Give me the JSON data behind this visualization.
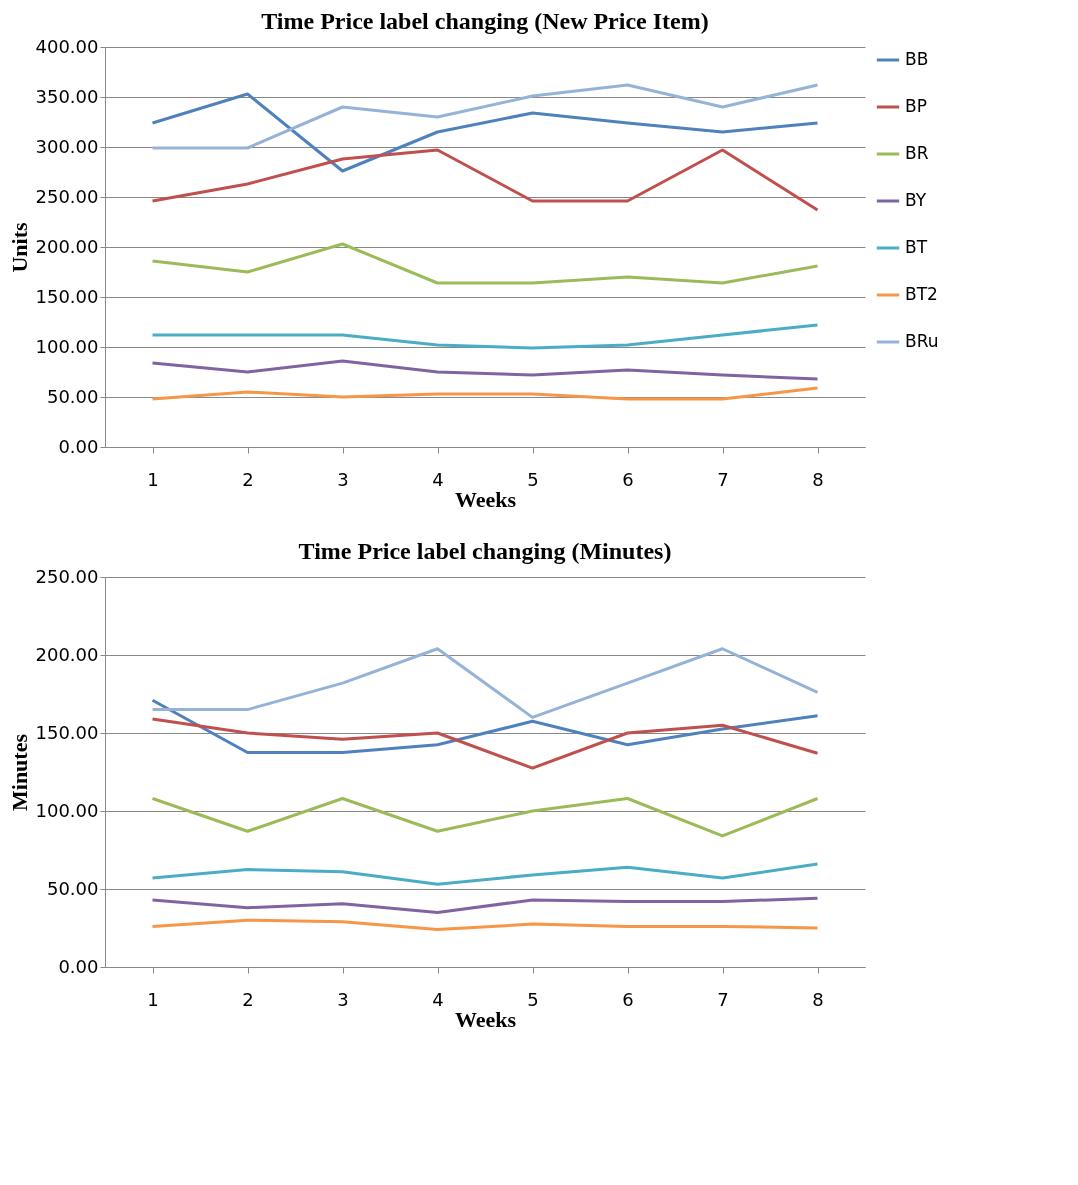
{
  "chart_data": [
    {
      "type": "line",
      "title": "Time Price label changing (New Price Item)",
      "xlabel": "Weeks",
      "ylabel": "Units",
      "categories": [
        "1",
        "2",
        "3",
        "4",
        "5",
        "6",
        "7",
        "8"
      ],
      "series": [
        {
          "name": "BB",
          "color": "#4f81bd",
          "values": [
            324,
            353,
            276,
            315,
            334,
            324,
            315,
            324
          ]
        },
        {
          "name": "BP",
          "color": "#c0504d",
          "values": [
            246,
            263,
            288,
            297,
            246,
            246,
            297,
            237
          ]
        },
        {
          "name": "BR",
          "color": "#9bbb59",
          "values": [
            186,
            175,
            203,
            164,
            164,
            170,
            164,
            181
          ]
        },
        {
          "name": "BY",
          "color": "#8064a2",
          "values": [
            84,
            75,
            86,
            75,
            72,
            77,
            72,
            68
          ]
        },
        {
          "name": "BT",
          "color": "#4bacc6",
          "values": [
            112,
            112,
            112,
            102,
            99,
            102,
            112,
            122
          ]
        },
        {
          "name": "BT2",
          "color": "#f79646",
          "values": [
            48,
            55,
            50,
            53,
            53,
            48,
            48,
            59
          ]
        },
        {
          "name": "BRu",
          "color": "#95b3d7",
          "values": [
            299,
            299,
            340,
            330,
            351,
            362,
            340,
            362
          ]
        }
      ],
      "ylim": [
        0,
        400
      ],
      "yticks": [
        {
          "value": 0,
          "label": "0.00"
        },
        {
          "value": 50,
          "label": "50.00"
        },
        {
          "value": 100,
          "label": "100.00"
        },
        {
          "value": 150,
          "label": "150.00"
        },
        {
          "value": 200,
          "label": "200.00"
        },
        {
          "value": 250,
          "label": "250.00"
        },
        {
          "value": 300,
          "label": "300.00"
        },
        {
          "value": 350,
          "label": "350.00"
        },
        {
          "value": 400,
          "label": "400.00"
        }
      ],
      "grid": "y",
      "legend": "right",
      "marker": "none",
      "line_style": "solid"
    },
    {
      "type": "line",
      "title": "Time Price label changing (Minutes)",
      "xlabel": "Weeks",
      "ylabel": "Minutes",
      "categories": [
        "1",
        "2",
        "3",
        "4",
        "5",
        "6",
        "7",
        "8"
      ],
      "series": [
        {
          "name": "BB",
          "color": "#4f81bd",
          "values": [
            171,
            137.5,
            137.5,
            142.5,
            157.5,
            142.5,
            152.5,
            161
          ]
        },
        {
          "name": "BP",
          "color": "#c0504d",
          "values": [
            159,
            150,
            146,
            150,
            127.5,
            150,
            155,
            137
          ]
        },
        {
          "name": "BR",
          "color": "#9bbb59",
          "values": [
            108,
            87,
            108,
            87,
            100,
            108,
            84,
            108
          ]
        },
        {
          "name": "BY",
          "color": "#8064a2",
          "values": [
            43,
            38,
            40.5,
            35,
            43,
            42,
            42,
            44
          ]
        },
        {
          "name": "BT",
          "color": "#4bacc6",
          "values": [
            57,
            62.5,
            61,
            53,
            59,
            64,
            57,
            66
          ]
        },
        {
          "name": "BT2",
          "color": "#f79646",
          "values": [
            26,
            30,
            29,
            24,
            27.5,
            26,
            26,
            25
          ]
        },
        {
          "name": "BRu",
          "color": "#95b3d7",
          "values": [
            165,
            165,
            182,
            204,
            160,
            182,
            204,
            176
          ]
        }
      ],
      "ylim": [
        0,
        250
      ],
      "yticks": [
        {
          "value": 0,
          "label": "0.00"
        },
        {
          "value": 50,
          "label": "50.00"
        },
        {
          "value": 100,
          "label": "100.00"
        },
        {
          "value": 150,
          "label": "150.00"
        },
        {
          "value": 200,
          "label": "200.00"
        },
        {
          "value": 250,
          "label": "250.00"
        }
      ],
      "grid": "y",
      "legend": "right",
      "marker": "none",
      "line_style": "solid"
    }
  ]
}
